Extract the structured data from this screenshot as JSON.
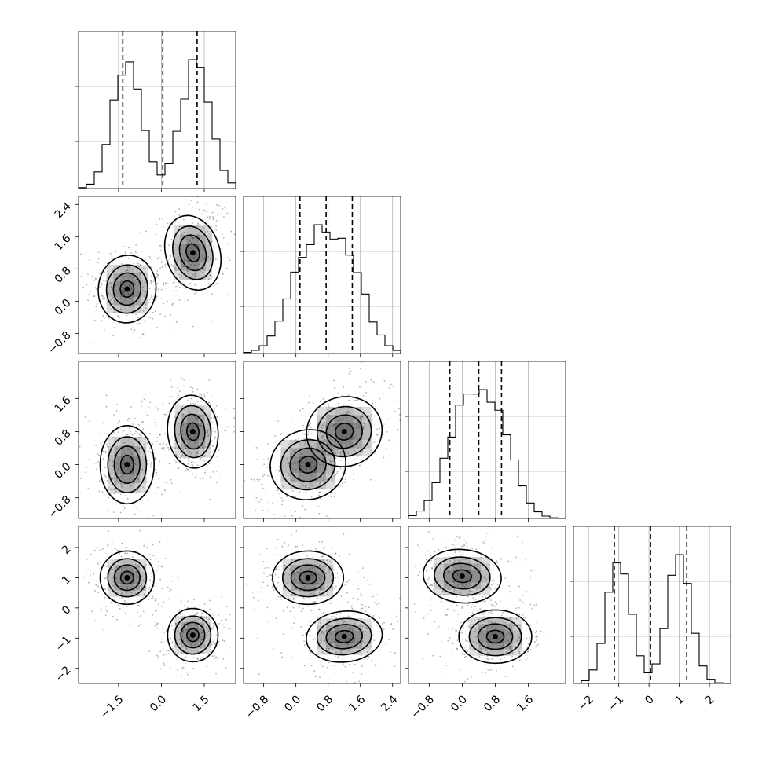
{
  "chart_data": {
    "type": "corner",
    "dims": 4,
    "axes": [
      {
        "range": [
          -2.9,
          2.6
        ],
        "ticks": [
          -1.5,
          0.0,
          1.5
        ],
        "tick_labels": [
          "−1.5",
          "0.0",
          "1.5"
        ],
        "components": [
          {
            "mean": -1.2,
            "sd": 0.5,
            "w": 0.5
          },
          {
            "mean": 1.2,
            "sd": 0.5,
            "w": 0.5
          }
        ],
        "quantiles": [
          -1.35,
          0.05,
          1.25
        ]
      },
      {
        "range": [
          -1.3,
          2.6
        ],
        "ticks": [
          -0.8,
          0.0,
          0.8,
          1.6,
          2.4
        ],
        "tick_labels": [
          "−0.8",
          "0.0",
          "0.8",
          "1.6",
          "2.4"
        ],
        "components": [
          {
            "mean": 0.3,
            "sd": 0.5,
            "w": 0.5
          },
          {
            "mean": 1.2,
            "sd": 0.5,
            "w": 0.5
          }
        ],
        "quantiles": [
          0.1,
          0.75,
          1.4
        ]
      },
      {
        "range": [
          -1.3,
          2.5
        ],
        "ticks": [
          -0.8,
          0.0,
          0.8,
          1.6
        ],
        "tick_labels": [
          "−0.8",
          "0.0",
          "0.8",
          "1.6"
        ],
        "components": [
          {
            "mean": 0.0,
            "sd": 0.45,
            "w": 0.5
          },
          {
            "mean": 0.8,
            "sd": 0.45,
            "w": 0.5
          }
        ],
        "quantiles": [
          -0.3,
          0.4,
          0.95
        ]
      },
      {
        "range": [
          -2.5,
          2.7
        ],
        "ticks": [
          -2,
          -1,
          0,
          1,
          2
        ],
        "tick_labels": [
          "−2",
          "−1",
          "0",
          "1",
          "2"
        ],
        "components": [
          {
            "mean": -1.0,
            "sd": 0.4,
            "w": 0.5
          },
          {
            "mean": 1.0,
            "sd": 0.4,
            "w": 0.5
          }
        ],
        "quantiles": [
          -1.15,
          0.05,
          1.25
        ]
      }
    ],
    "pairs": [
      {
        "row": 1,
        "col": 0,
        "clusters": [
          {
            "x": -1.2,
            "y": 0.3,
            "sx": 0.48,
            "sy": 0.4,
            "rho": -0.1
          },
          {
            "x": 1.1,
            "y": 1.2,
            "sx": 0.45,
            "sy": 0.45,
            "rho": 0.3
          }
        ]
      },
      {
        "row": 2,
        "col": 0,
        "clusters": [
          {
            "x": -1.2,
            "y": 0.0,
            "sx": 0.45,
            "sy": 0.45,
            "rho": 0.0
          },
          {
            "x": 1.1,
            "y": 0.8,
            "sx": 0.42,
            "sy": 0.42,
            "rho": 0.1
          }
        ]
      },
      {
        "row": 2,
        "col": 1,
        "clusters": [
          {
            "x": 0.3,
            "y": 0.0,
            "sx": 0.45,
            "sy": 0.4,
            "rho": 0.3
          },
          {
            "x": 1.2,
            "y": 0.8,
            "sx": 0.45,
            "sy": 0.4,
            "rho": 0.3
          }
        ]
      },
      {
        "row": 3,
        "col": 0,
        "clusters": [
          {
            "x": -1.2,
            "y": 1.0,
            "sx": 0.45,
            "sy": 0.42,
            "rho": 0.0
          },
          {
            "x": 1.1,
            "y": -0.9,
            "sx": 0.42,
            "sy": 0.42,
            "rho": 0.0
          }
        ]
      },
      {
        "row": 3,
        "col": 1,
        "clusters": [
          {
            "x": 0.3,
            "y": 1.0,
            "sx": 0.42,
            "sy": 0.42,
            "rho": 0.0
          },
          {
            "x": 1.2,
            "y": -0.95,
            "sx": 0.45,
            "sy": 0.4,
            "rho": 0.1
          }
        ]
      },
      {
        "row": 3,
        "col": 2,
        "clusters": [
          {
            "x": 0.0,
            "y": 1.05,
            "sx": 0.45,
            "sy": 0.42,
            "rho": -0.1
          },
          {
            "x": 0.8,
            "y": -0.95,
            "sx": 0.42,
            "sy": 0.42,
            "rho": 0.0
          }
        ]
      }
    ],
    "histogram_bins": 20,
    "contour_levels": [
      0.5,
      1.0,
      1.5,
      2.0
    ],
    "grid": true,
    "colors": {
      "line": "#000000",
      "grid": "#b0b0b0",
      "scatter": "#555555",
      "density": "#444444"
    }
  }
}
